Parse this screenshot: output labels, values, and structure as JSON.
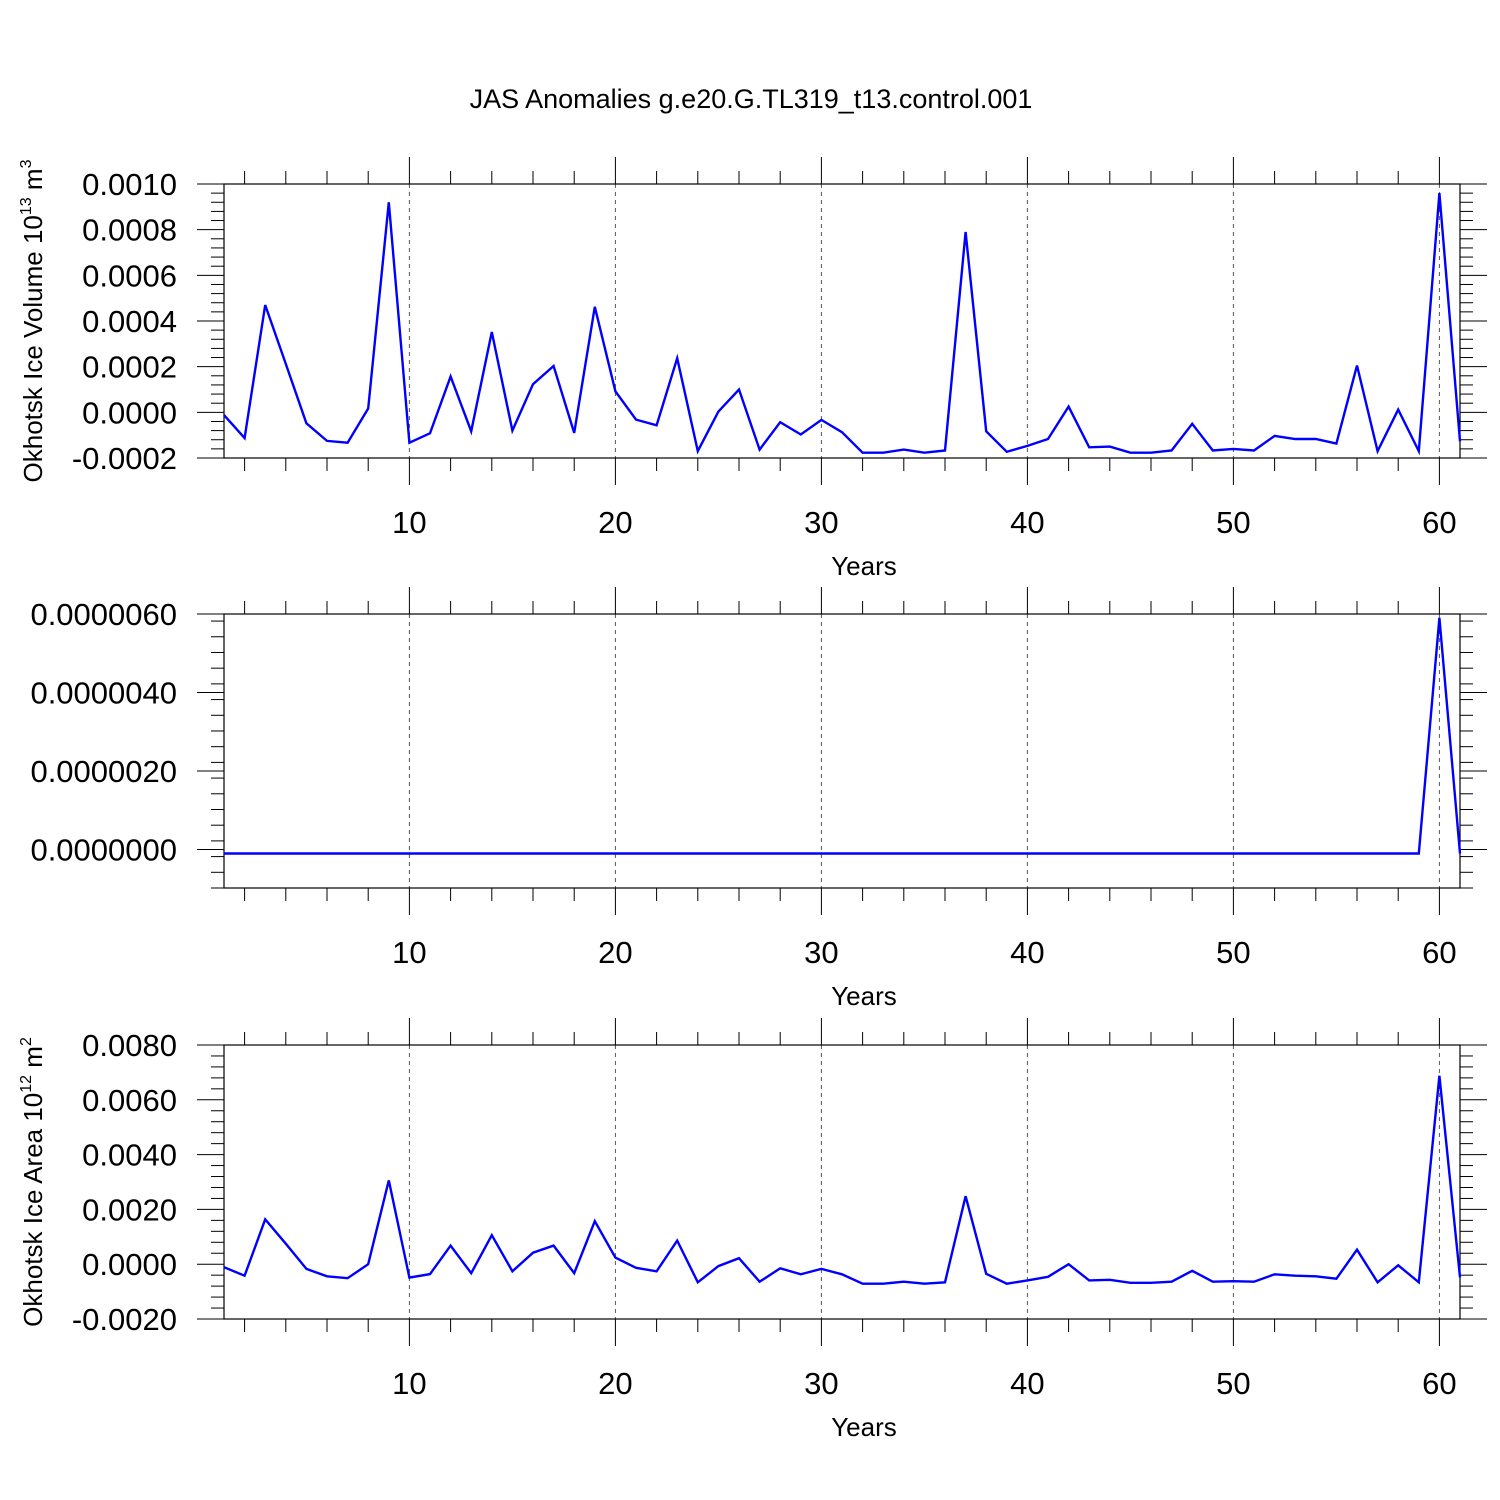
{
  "figure": {
    "title": "JAS Anomalies g.e20.G.TL319_t13.control.001"
  },
  "chart_data": [
    {
      "type": "line",
      "ylabel": "Okhotsk Ice Volume 10",
      "ylabel_unit": "m",
      "ylabel_exp1": "13",
      "ylabel_exp2": "3",
      "xlabel": "Years",
      "xlim": [
        1,
        61
      ],
      "ylim": [
        -0.0002,
        0.001
      ],
      "yticks": [
        -0.0002,
        0.0,
        0.0002,
        0.0004,
        0.0006,
        0.0008,
        0.001
      ],
      "ytick_labels": [
        "-0.0002",
        "0.0000",
        "0.0002",
        "0.0004",
        "0.0006",
        "0.0008",
        "0.0010"
      ],
      "xticks": [
        10,
        20,
        30,
        40,
        50,
        60
      ],
      "xtick_labels": [
        "10",
        "20",
        "30",
        "40",
        "50",
        "60"
      ],
      "grid": "vertical dashed at major x ticks",
      "color": "#0000ff",
      "x": [
        1,
        2,
        3,
        4,
        5,
        6,
        7,
        8,
        9,
        10,
        11,
        12,
        13,
        14,
        15,
        16,
        17,
        18,
        19,
        20,
        21,
        22,
        23,
        24,
        25,
        26,
        27,
        28,
        29,
        30,
        31,
        32,
        33,
        34,
        35,
        36,
        37,
        38,
        39,
        40,
        41,
        42,
        43,
        44,
        45,
        46,
        47,
        48,
        49,
        50,
        51,
        52,
        53,
        54,
        55,
        56,
        57,
        58,
        59,
        60,
        61
      ],
      "values": [
        -1.2e-05,
        -0.000113,
        0.00047,
        0.000212,
        -4.8e-05,
        -0.000125,
        -0.000133,
        1.7e-05,
        0.00092,
        -0.000133,
        -9.2e-05,
        0.000157,
        -8.3e-05,
        0.000352,
        -8e-05,
        0.000123,
        0.000203,
        -9e-05,
        0.000462,
        9.2e-05,
        -3.2e-05,
        -5.7e-05,
        0.000237,
        -0.00017,
        3e-06,
        0.0001,
        -0.000163,
        -4.3e-05,
        -9.7e-05,
        -3.3e-05,
        -8.7e-05,
        -0.000177,
        -0.000177,
        -0.000163,
        -0.000177,
        -0.000167,
        0.00079,
        -8.3e-05,
        -0.000173,
        -0.000147,
        -0.000117,
        2.5e-05,
        -0.000153,
        -0.00015,
        -0.000177,
        -0.000177,
        -0.000167,
        -5e-05,
        -0.000167,
        -0.00016,
        -0.000167,
        -0.000103,
        -0.000117,
        -0.000117,
        -0.000137,
        0.000205,
        -0.00017,
        1.2e-05,
        -0.00017,
        0.00096,
        -0.000127
      ]
    },
    {
      "type": "line",
      "ylabel": "",
      "xlabel": "Years",
      "xlim": [
        1,
        61
      ],
      "ylim": [
        -9.8e-07,
        6e-06
      ],
      "yticks": [
        0.0,
        2e-06,
        4e-06,
        6e-06
      ],
      "ytick_labels": [
        "0.0000000",
        "0.0000020",
        "0.0000040",
        "0.0000060"
      ],
      "xticks": [
        10,
        20,
        30,
        40,
        50,
        60
      ],
      "xtick_labels": [
        "10",
        "20",
        "30",
        "40",
        "50",
        "60"
      ],
      "grid": "vertical dashed at major x ticks",
      "color": "#0000ff",
      "x": [
        1,
        2,
        3,
        4,
        5,
        6,
        7,
        8,
        9,
        10,
        11,
        12,
        13,
        14,
        15,
        16,
        17,
        18,
        19,
        20,
        21,
        22,
        23,
        24,
        25,
        26,
        27,
        28,
        29,
        30,
        31,
        32,
        33,
        34,
        35,
        36,
        37,
        38,
        39,
        40,
        41,
        42,
        43,
        44,
        45,
        46,
        47,
        48,
        49,
        50,
        51,
        52,
        53,
        54,
        55,
        56,
        57,
        58,
        59,
        60,
        61
      ],
      "values": [
        -1e-07,
        -1e-07,
        -1e-07,
        -1e-07,
        -1e-07,
        -1e-07,
        -1e-07,
        -1e-07,
        -1e-07,
        -1e-07,
        -1e-07,
        -1e-07,
        -1e-07,
        -1e-07,
        -1e-07,
        -1e-07,
        -1e-07,
        -1e-07,
        -1e-07,
        -1e-07,
        -1e-07,
        -1e-07,
        -1e-07,
        -1e-07,
        -1e-07,
        -1e-07,
        -1e-07,
        -1e-07,
        -1e-07,
        -1e-07,
        -1e-07,
        -1e-07,
        -1e-07,
        -1e-07,
        -1e-07,
        -1e-07,
        -1e-07,
        -1e-07,
        -1e-07,
        -1e-07,
        -1e-07,
        -1e-07,
        -1e-07,
        -1e-07,
        -1e-07,
        -1e-07,
        -1e-07,
        -1e-07,
        -1e-07,
        -1e-07,
        -1e-07,
        -1e-07,
        -1e-07,
        -1e-07,
        -1e-07,
        -1e-07,
        -1e-07,
        -1e-07,
        -1e-07,
        5.9e-06,
        -1e-07
      ]
    },
    {
      "type": "line",
      "ylabel": "Okhotsk Ice Area 10",
      "ylabel_unit": "m",
      "ylabel_exp1": "12",
      "ylabel_exp2": "2",
      "xlabel": "Years",
      "xlim": [
        1,
        61
      ],
      "ylim": [
        -0.002,
        0.008
      ],
      "yticks": [
        -0.002,
        0.0,
        0.002,
        0.004,
        0.006,
        0.008
      ],
      "ytick_labels": [
        "-0.0020",
        "0.0000",
        "0.0020",
        "0.0040",
        "0.0060",
        "0.0080"
      ],
      "xticks": [
        10,
        20,
        30,
        40,
        50,
        60
      ],
      "xtick_labels": [
        "10",
        "20",
        "30",
        "40",
        "50",
        "60"
      ],
      "grid": "vertical dashed at major x ticks",
      "color": "#0000ff",
      "x": [
        1,
        2,
        3,
        4,
        5,
        6,
        7,
        8,
        9,
        10,
        11,
        12,
        13,
        14,
        15,
        16,
        17,
        18,
        19,
        20,
        21,
        22,
        23,
        24,
        25,
        26,
        27,
        28,
        29,
        30,
        31,
        32,
        33,
        34,
        35,
        36,
        37,
        38,
        39,
        40,
        41,
        42,
        43,
        44,
        45,
        46,
        47,
        48,
        49,
        50,
        51,
        52,
        53,
        54,
        55,
        56,
        57,
        58,
        59,
        60,
        61
      ],
      "values": [
        -0.00011,
        -0.00042,
        0.00164,
        0.00075,
        -0.00017,
        -0.00044,
        -0.00051,
        0.0,
        0.00306,
        -0.00049,
        -0.00036,
        0.00068,
        -0.00033,
        0.00106,
        -0.00026,
        0.00042,
        0.00068,
        -0.00033,
        0.00157,
        0.00024,
        -0.00013,
        -0.00026,
        0.00086,
        -0.00066,
        -7e-05,
        0.00022,
        -0.00064,
        -0.00015,
        -0.00037,
        -0.00017,
        -0.00037,
        -0.00071,
        -0.00071,
        -0.00064,
        -0.00071,
        -0.00066,
        0.00248,
        -0.00035,
        -0.00071,
        -0.00059,
        -0.00046,
        0.0,
        -0.00059,
        -0.00057,
        -0.00068,
        -0.00068,
        -0.00064,
        -0.00024,
        -0.00064,
        -0.00062,
        -0.00064,
        -0.00037,
        -0.00042,
        -0.00044,
        -0.00053,
        0.00053,
        -0.00066,
        -4e-05,
        -0.00066,
        0.00688,
        -0.00048
      ]
    }
  ]
}
